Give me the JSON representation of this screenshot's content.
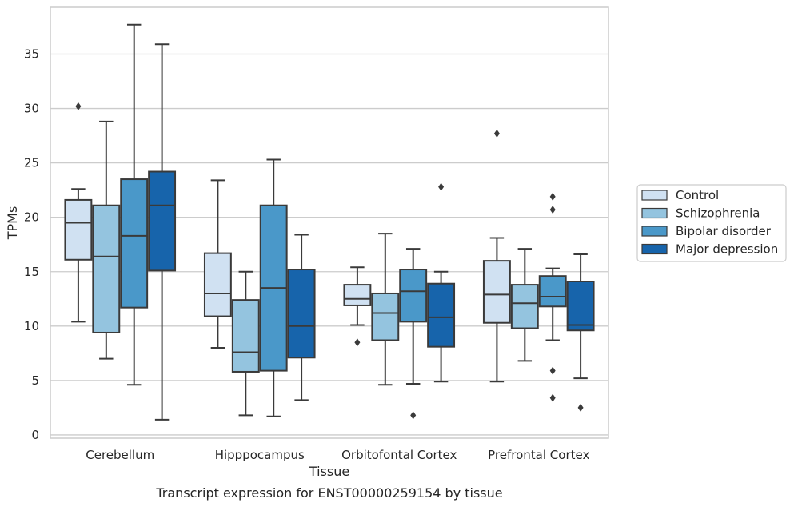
{
  "caption": "Transcript expression for ENST00000259154 by tissue",
  "chart_data": {
    "type": "box",
    "xlabel": "Tissue",
    "ylabel": "TPMs",
    "ylim": [
      -0.3,
      39.3
    ],
    "yticks": [
      0,
      5,
      10,
      15,
      20,
      25,
      30,
      35
    ],
    "grid": "horizontal",
    "legend_position": "right",
    "categories": [
      "Cerebellum",
      "Hipppocampus",
      "Orbitofontal Cortex",
      "Prefrontal Cortex"
    ],
    "series": [
      {
        "name": "Control",
        "color": "#d0e1f2",
        "boxes": [
          {
            "whisker_low": 10.4,
            "q1": 16.1,
            "median": 19.5,
            "q3": 21.6,
            "whisker_high": 22.6,
            "outliers": [
              30.2
            ]
          },
          {
            "whisker_low": 8.0,
            "q1": 10.9,
            "median": 13.0,
            "q3": 16.7,
            "whisker_high": 23.4,
            "outliers": []
          },
          {
            "whisker_low": 10.1,
            "q1": 11.9,
            "median": 12.5,
            "q3": 13.8,
            "whisker_high": 15.4,
            "outliers": [
              8.5
            ]
          },
          {
            "whisker_low": 4.9,
            "q1": 10.3,
            "median": 12.9,
            "q3": 16.0,
            "whisker_high": 18.1,
            "outliers": [
              27.7
            ]
          }
        ]
      },
      {
        "name": "Schizophrenia",
        "color": "#94c4df",
        "boxes": [
          {
            "whisker_low": 7.0,
            "q1": 9.4,
            "median": 16.4,
            "q3": 21.1,
            "whisker_high": 28.8,
            "outliers": []
          },
          {
            "whisker_low": 1.8,
            "q1": 5.8,
            "median": 7.6,
            "q3": 12.4,
            "whisker_high": 15.0,
            "outliers": []
          },
          {
            "whisker_low": 4.6,
            "q1": 8.7,
            "median": 11.2,
            "q3": 13.0,
            "whisker_high": 18.5,
            "outliers": []
          },
          {
            "whisker_low": 6.8,
            "q1": 9.8,
            "median": 12.1,
            "q3": 13.8,
            "whisker_high": 17.1,
            "outliers": []
          }
        ]
      },
      {
        "name": "Bipolar disorder",
        "color": "#4a98c9",
        "boxes": [
          {
            "whisker_low": 4.6,
            "q1": 11.7,
            "median": 18.3,
            "q3": 23.5,
            "whisker_high": 37.7,
            "outliers": []
          },
          {
            "whisker_low": 1.7,
            "q1": 5.9,
            "median": 13.5,
            "q3": 21.1,
            "whisker_high": 25.3,
            "outliers": []
          },
          {
            "whisker_low": 4.7,
            "q1": 10.4,
            "median": 13.2,
            "q3": 15.2,
            "whisker_high": 17.1,
            "outliers": [
              1.8
            ]
          },
          {
            "whisker_low": 8.7,
            "q1": 11.8,
            "median": 12.7,
            "q3": 14.6,
            "whisker_high": 15.3,
            "outliers": [
              21.9,
              20.7,
              5.9,
              3.4
            ]
          }
        ]
      },
      {
        "name": "Major depression",
        "color": "#1764ab",
        "boxes": [
          {
            "whisker_low": 1.4,
            "q1": 15.1,
            "median": 21.1,
            "q3": 24.2,
            "whisker_high": 35.9,
            "outliers": []
          },
          {
            "whisker_low": 3.2,
            "q1": 7.1,
            "median": 10.0,
            "q3": 15.2,
            "whisker_high": 18.4,
            "outliers": []
          },
          {
            "whisker_low": 4.9,
            "q1": 8.1,
            "median": 10.8,
            "q3": 13.9,
            "whisker_high": 15.0,
            "outliers": [
              22.8
            ]
          },
          {
            "whisker_low": 5.2,
            "q1": 9.6,
            "median": 10.1,
            "q3": 14.1,
            "whisker_high": 16.6,
            "outliers": [
              2.5
            ]
          }
        ]
      }
    ]
  }
}
